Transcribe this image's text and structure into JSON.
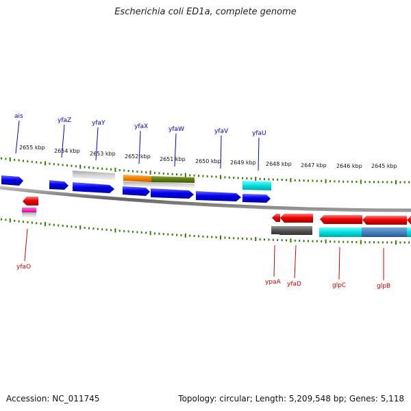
{
  "title": "Escherichia coli ED1a, complete genome",
  "footer": {
    "accession_label": "Accession:",
    "accession": "NC_011745",
    "topology_label": "Topology:",
    "topology": "circular",
    "length_label": "Length:",
    "length": "5,209,548 bp",
    "genes_label": "Genes:",
    "genes": "5,118"
  },
  "colors": {
    "forward_gene": "#0000ee",
    "reverse_gene": "#ee0000",
    "forward_label": "#0000cc",
    "reverse_label": "#cc0000",
    "tick": "#2e7d00",
    "backbone": "#777777"
  },
  "scale_labels": [
    "2655 kbp",
    "2654 kbp",
    "2653 kbp",
    "2652 kbp",
    "2651 kbp",
    "2650 kbp",
    "2649 kbp",
    "2648 kbp",
    "2647 kbp",
    "2646 kbp",
    "2645 kbp"
  ],
  "forward_genes": [
    "ais",
    "yfaZ",
    "yfaY",
    "yfaX",
    "yfaW",
    "yfaV",
    "yfaU"
  ],
  "reverse_genes": [
    "yfaO",
    "ypaA",
    "yfaD",
    "glpC",
    "glpB"
  ]
}
